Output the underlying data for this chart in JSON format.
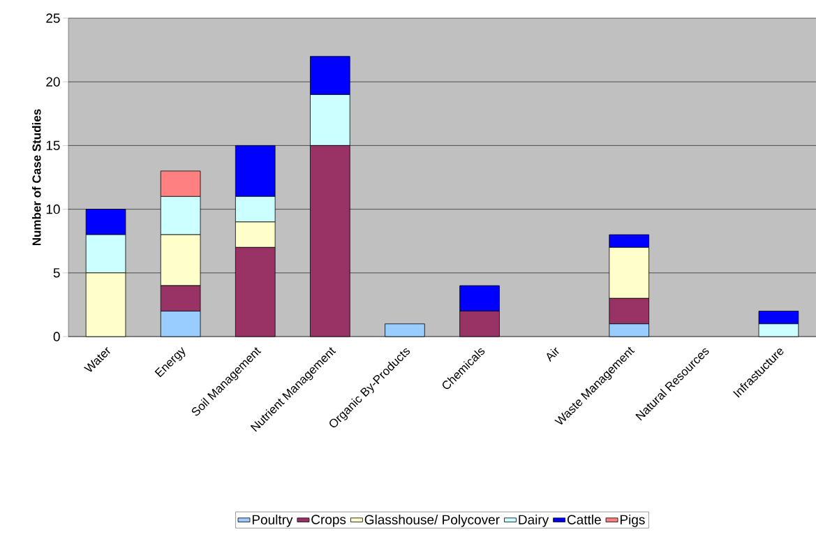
{
  "chart_data": {
    "type": "bar",
    "stacked": true,
    "ylabel": "Number of Case Studies",
    "categories": [
      "Water",
      "Energy",
      "Soil Management",
      "Nutrient Management",
      "Organic By-Products",
      "Chemicals",
      "Air",
      "Waste Management",
      "Natural Resources",
      "Infrastucture"
    ],
    "series": [
      {
        "name": "Poultry",
        "color": "#99ccff",
        "values": [
          0,
          2,
          0,
          0,
          1,
          0,
          0,
          1,
          0,
          0
        ]
      },
      {
        "name": "Crops",
        "color": "#993366",
        "values": [
          0,
          2,
          7,
          15,
          0,
          2,
          0,
          2,
          0,
          0
        ]
      },
      {
        "name": "Glasshouse/ Polycover",
        "color": "#ffffcc",
        "values": [
          5,
          4,
          2,
          0,
          0,
          0,
          0,
          4,
          0,
          0
        ]
      },
      {
        "name": "Dairy",
        "color": "#ccffff",
        "values": [
          3,
          3,
          2,
          4,
          0,
          0,
          0,
          0,
          0,
          1
        ]
      },
      {
        "name": "Cattle",
        "color": "#0000ff",
        "values": [
          2,
          0,
          4,
          3,
          0,
          2,
          0,
          1,
          0,
          1
        ]
      },
      {
        "name": "Pigs",
        "color": "#ff8080",
        "values": [
          0,
          2,
          0,
          0,
          0,
          0,
          0,
          0,
          0,
          0
        ]
      }
    ],
    "ylim": [
      0,
      25
    ],
    "yticks": [
      0,
      5,
      10,
      15,
      20,
      25
    ],
    "grid": "y",
    "legend": "bottom"
  }
}
